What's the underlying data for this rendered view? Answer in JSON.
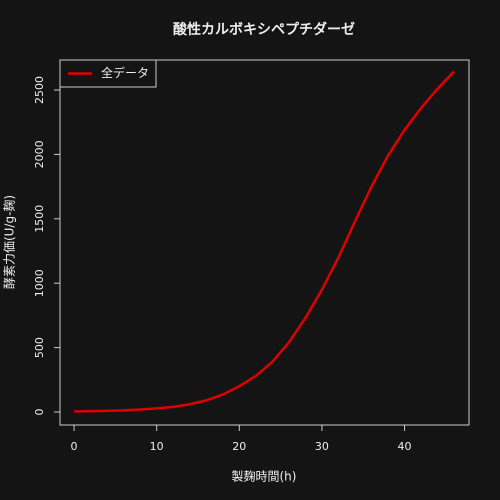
{
  "chart_data": {
    "type": "line",
    "title": "酸性カルボキシペプチダーゼ",
    "xlabel": "製麹時間(h)",
    "ylabel": "酵素力価(U/g-麹)",
    "x": [
      0,
      2,
      4,
      6,
      8,
      10,
      12,
      14,
      16,
      18,
      20,
      22,
      24,
      26,
      28,
      30,
      32,
      34,
      36,
      38,
      40,
      42,
      44,
      46
    ],
    "series": [
      {
        "name": "全データ",
        "color": "#e00000",
        "values": [
          5,
          7,
          9,
          13,
          19,
          28,
          40,
          60,
          90,
          135,
          200,
          280,
          390,
          540,
          730,
          950,
          1200,
          1480,
          1750,
          1990,
          2190,
          2360,
          2510,
          2645
        ]
      }
    ],
    "xlim": [
      -1.7,
      47.8
    ],
    "xticks": [
      0,
      10,
      20,
      30,
      40
    ],
    "ylim": [
      -101,
      2733
    ],
    "yticks": [
      0,
      500,
      1000,
      1500,
      2000,
      2500
    ],
    "legend": "top-left"
  }
}
